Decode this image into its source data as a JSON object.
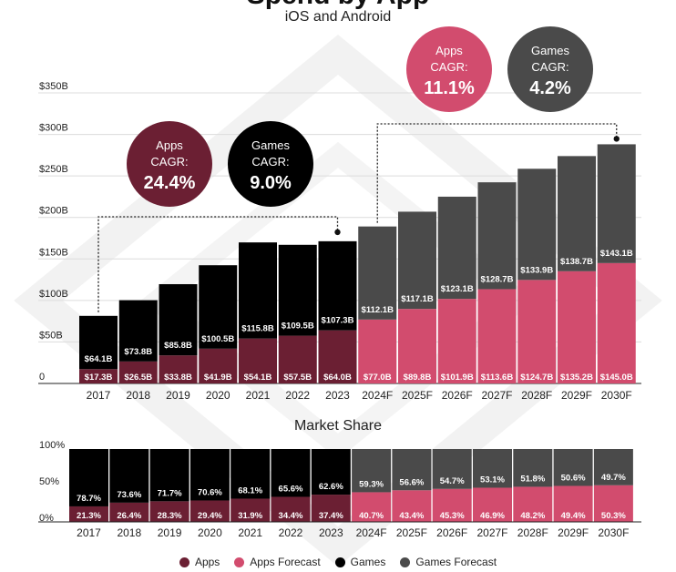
{
  "title": "Spend by App",
  "subtitle": "iOS and Android",
  "share_title": "Market Share",
  "colors": {
    "apps": "#6b1f33",
    "apps_forecast": "#d24c6e",
    "games": "#000000",
    "games_forecast": "#4a4a4a"
  },
  "cagr_bubbles": [
    {
      "label": "Apps",
      "sub": "CAGR:",
      "value": "24.4%",
      "color": "#6b1f33"
    },
    {
      "label": "Games",
      "sub": "CAGR:",
      "value": "9.0%",
      "color": "#000000"
    },
    {
      "label": "Apps",
      "sub": "CAGR:",
      "value": "11.1%",
      "color": "#d24c6e"
    },
    {
      "label": "Games",
      "sub": "CAGR:",
      "value": "4.2%",
      "color": "#4a4a4a"
    }
  ],
  "legend": [
    {
      "label": "Apps",
      "color": "#6b1f33"
    },
    {
      "label": "Apps Forecast",
      "color": "#d24c6e"
    },
    {
      "label": "Games",
      "color": "#000000"
    },
    {
      "label": "Games Forecast",
      "color": "#4a4a4a"
    }
  ],
  "chart_data": [
    {
      "type": "bar",
      "stacked": true,
      "categories": [
        "2017",
        "2018",
        "2019",
        "2020",
        "2021",
        "2022",
        "2023",
        "2024F",
        "2025F",
        "2026F",
        "2027F",
        "2028F",
        "2029F",
        "2030F"
      ],
      "forecast_from_index": 7,
      "series": [
        {
          "name": "Apps",
          "values": [
            17.3,
            26.5,
            33.8,
            41.9,
            54.1,
            57.5,
            64.0,
            77.0,
            89.8,
            101.9,
            113.6,
            124.7,
            135.2,
            145.0
          ],
          "labels": [
            "$17.3B",
            "$26.5B",
            "$33.8B",
            "$41.9B",
            "$54.1B",
            "$57.5B",
            "$64.0B",
            "$77.0B",
            "$89.8B",
            "$101.9B",
            "$113.6B",
            "$124.7B",
            "$135.2B",
            "$145.0B"
          ]
        },
        {
          "name": "Games",
          "values": [
            64.1,
            73.8,
            85.8,
            100.5,
            115.8,
            109.5,
            107.3,
            112.1,
            117.1,
            123.1,
            128.7,
            133.9,
            138.7,
            143.1
          ],
          "labels": [
            "$64.1B",
            "$73.8B",
            "$85.8B",
            "$100.5B",
            "$115.8B",
            "$109.5B",
            "$107.3B",
            "$112.1B",
            "$117.1B",
            "$123.1B",
            "$128.7B",
            "$133.9B",
            "$138.7B",
            "$143.1B"
          ]
        }
      ],
      "ylim": [
        0,
        350
      ],
      "ytick_labels": [
        "0",
        "$50B",
        "$100B",
        "$150B",
        "$200B",
        "$250B",
        "$300B",
        "$350B"
      ],
      "grid": true
    },
    {
      "type": "bar",
      "stacked": true,
      "title": "Market Share",
      "categories": [
        "2017",
        "2018",
        "2019",
        "2020",
        "2021",
        "2022",
        "2023",
        "2024F",
        "2025F",
        "2026F",
        "2027F",
        "2028F",
        "2029F",
        "2030F"
      ],
      "forecast_from_index": 7,
      "series": [
        {
          "name": "Apps",
          "values": [
            21.3,
            26.4,
            28.3,
            29.4,
            31.9,
            34.4,
            37.4,
            40.7,
            43.4,
            45.3,
            46.9,
            48.2,
            49.4,
            50.3
          ],
          "labels": [
            "21.3%",
            "26.4%",
            "28.3%",
            "29.4%",
            "31.9%",
            "34.4%",
            "37.4%",
            "40.7%",
            "43.4%",
            "45.3%",
            "46.9%",
            "48.2%",
            "49.4%",
            "50.3%"
          ]
        },
        {
          "name": "Games",
          "values": [
            78.7,
            73.6,
            71.7,
            70.6,
            68.1,
            65.6,
            62.6,
            59.3,
            56.6,
            54.7,
            53.1,
            51.8,
            50.6,
            49.7
          ],
          "labels": [
            "78.7%",
            "73.6%",
            "71.7%",
            "70.6%",
            "68.1%",
            "65.6%",
            "62.6%",
            "59.3%",
            "56.6%",
            "54.7%",
            "53.1%",
            "51.8%",
            "50.6%",
            "49.7%"
          ]
        }
      ],
      "ylim": [
        0,
        100
      ],
      "ytick_labels": [
        "0%",
        "50%",
        "100%"
      ]
    }
  ]
}
